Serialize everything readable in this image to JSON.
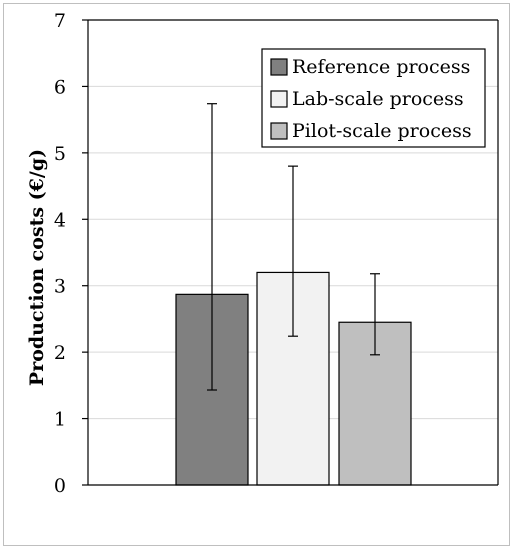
{
  "chart_data": {
    "type": "bar",
    "title": "",
    "xlabel": "",
    "ylabel": "Production costs (€/g)",
    "ylim": [
      0,
      7
    ],
    "yticks": [
      0,
      1,
      2,
      3,
      4,
      5,
      6,
      7
    ],
    "grid": true,
    "legend_position": "top-right",
    "series": [
      {
        "name": "Reference process",
        "value": 2.87,
        "error_low": 1.43,
        "error_high": 5.74,
        "color": "#808080"
      },
      {
        "name": "Lab-scale process",
        "value": 3.2,
        "error_low": 2.24,
        "error_high": 4.8,
        "color": "#f2f2f2"
      },
      {
        "name": "Pilot-scale process",
        "value": 2.45,
        "error_low": 1.96,
        "error_high": 3.18,
        "color": "#bfbfbf"
      }
    ]
  }
}
